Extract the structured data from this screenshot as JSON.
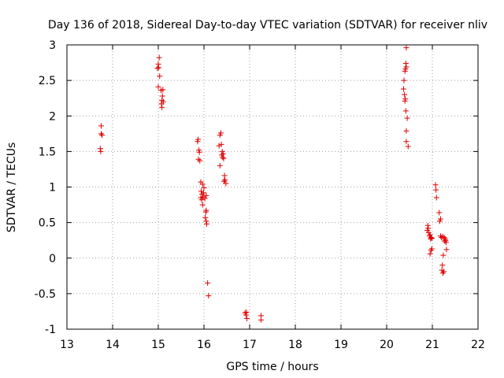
{
  "chart_data": {
    "type": "scatter",
    "title": "Day 136 of 2018, Sidereal Day-to-day VTEC variation (SDTVAR) for receiver nliv",
    "xlabel": "GPS time / hours",
    "ylabel": "SDTVAR / TECUs",
    "xlim": [
      13,
      22
    ],
    "ylim": [
      -1,
      3
    ],
    "grid": true,
    "marker": "+",
    "color": "#e00000",
    "x_ticks": [
      {
        "value": 13,
        "label": "13"
      },
      {
        "value": 14,
        "label": "14"
      },
      {
        "value": 15,
        "label": "15"
      },
      {
        "value": 16,
        "label": "16"
      },
      {
        "value": 17,
        "label": "17"
      },
      {
        "value": 18,
        "label": "18"
      },
      {
        "value": 19,
        "label": "19"
      },
      {
        "value": 20,
        "label": "20"
      },
      {
        "value": 21,
        "label": "21"
      },
      {
        "value": 22,
        "label": "22"
      }
    ],
    "y_ticks": [
      {
        "value": -1,
        "label": "-1"
      },
      {
        "value": -0.5,
        "label": "-0.5"
      },
      {
        "value": 0,
        "label": "0"
      },
      {
        "value": 0.5,
        "label": "0.5"
      },
      {
        "value": 1,
        "label": "1"
      },
      {
        "value": 1.5,
        "label": "1.5"
      },
      {
        "value": 2,
        "label": "2"
      },
      {
        "value": 2.5,
        "label": "2.5"
      },
      {
        "value": 3,
        "label": "3"
      }
    ],
    "series": [
      {
        "name": "SDTVAR",
        "points": [
          [
            13.75,
            1.86
          ],
          [
            13.75,
            1.75
          ],
          [
            13.77,
            1.73
          ],
          [
            13.73,
            1.54
          ],
          [
            13.74,
            1.5
          ],
          [
            15.02,
            2.82
          ],
          [
            15.0,
            2.73
          ],
          [
            15.01,
            2.68
          ],
          [
            14.98,
            2.67
          ],
          [
            15.03,
            2.56
          ],
          [
            15.0,
            2.41
          ],
          [
            15.06,
            2.36
          ],
          [
            15.1,
            2.37
          ],
          [
            15.09,
            2.28
          ],
          [
            15.08,
            2.22
          ],
          [
            15.11,
            2.2
          ],
          [
            15.07,
            2.17
          ],
          [
            15.08,
            2.12
          ],
          [
            15.87,
            1.67
          ],
          [
            15.86,
            1.64
          ],
          [
            15.89,
            1.52
          ],
          [
            15.9,
            1.49
          ],
          [
            15.88,
            1.39
          ],
          [
            15.91,
            1.37
          ],
          [
            15.93,
            1.07
          ],
          [
            15.97,
            1.04
          ],
          [
            16.0,
            0.99
          ],
          [
            15.94,
            0.94
          ],
          [
            15.99,
            0.92
          ],
          [
            15.96,
            0.9
          ],
          [
            16.05,
            0.88
          ],
          [
            15.98,
            0.86
          ],
          [
            15.93,
            0.85
          ],
          [
            16.02,
            0.84
          ],
          [
            15.95,
            0.82
          ],
          [
            15.97,
            0.75
          ],
          [
            16.05,
            0.67
          ],
          [
            16.04,
            0.65
          ],
          [
            16.03,
            0.57
          ],
          [
            16.05,
            0.52
          ],
          [
            16.06,
            0.48
          ],
          [
            16.08,
            -0.35
          ],
          [
            16.1,
            -0.53
          ],
          [
            16.37,
            1.76
          ],
          [
            16.35,
            1.73
          ],
          [
            16.38,
            1.6
          ],
          [
            16.33,
            1.58
          ],
          [
            16.4,
            1.5
          ],
          [
            16.42,
            1.47
          ],
          [
            16.39,
            1.45
          ],
          [
            16.41,
            1.42
          ],
          [
            16.43,
            1.4
          ],
          [
            16.35,
            1.3
          ],
          [
            16.45,
            1.16
          ],
          [
            16.46,
            1.1
          ],
          [
            16.44,
            1.08
          ],
          [
            16.48,
            1.05
          ],
          [
            16.9,
            -0.77
          ],
          [
            16.93,
            -0.76
          ],
          [
            16.92,
            -0.8
          ],
          [
            16.94,
            -0.85
          ],
          [
            17.25,
            -0.81
          ],
          [
            17.25,
            -0.87
          ],
          [
            20.43,
            2.96
          ],
          [
            20.42,
            2.74
          ],
          [
            20.43,
            2.69
          ],
          [
            20.41,
            2.66
          ],
          [
            20.4,
            2.63
          ],
          [
            20.38,
            2.5
          ],
          [
            20.37,
            2.38
          ],
          [
            20.39,
            2.3
          ],
          [
            20.41,
            2.24
          ],
          [
            20.4,
            2.21
          ],
          [
            20.42,
            2.07
          ],
          [
            20.45,
            1.97
          ],
          [
            20.43,
            1.79
          ],
          [
            20.43,
            1.64
          ],
          [
            20.47,
            1.57
          ],
          [
            20.9,
            0.46
          ],
          [
            20.91,
            0.42
          ],
          [
            20.89,
            0.39
          ],
          [
            20.92,
            0.36
          ],
          [
            20.95,
            0.33
          ],
          [
            20.94,
            0.31
          ],
          [
            20.97,
            0.29
          ],
          [
            20.99,
            0.28
          ],
          [
            20.96,
            0.27
          ],
          [
            20.99,
            0.13
          ],
          [
            20.97,
            0.11
          ],
          [
            20.95,
            0.06
          ],
          [
            21.07,
            1.03
          ],
          [
            21.08,
            0.96
          ],
          [
            21.09,
            0.85
          ],
          [
            21.15,
            0.64
          ],
          [
            21.18,
            0.55
          ],
          [
            21.16,
            0.52
          ],
          [
            21.18,
            0.31
          ],
          [
            21.2,
            0.29
          ],
          [
            21.23,
            0.3
          ],
          [
            21.26,
            0.29
          ],
          [
            21.28,
            0.27
          ],
          [
            21.27,
            0.24
          ],
          [
            21.29,
            0.25
          ],
          [
            21.3,
            0.22
          ],
          [
            21.31,
            0.12
          ],
          [
            21.24,
            0.04
          ],
          [
            21.22,
            -0.1
          ],
          [
            21.21,
            -0.17
          ],
          [
            21.25,
            -0.19
          ],
          [
            21.23,
            -0.21
          ]
        ]
      }
    ]
  }
}
